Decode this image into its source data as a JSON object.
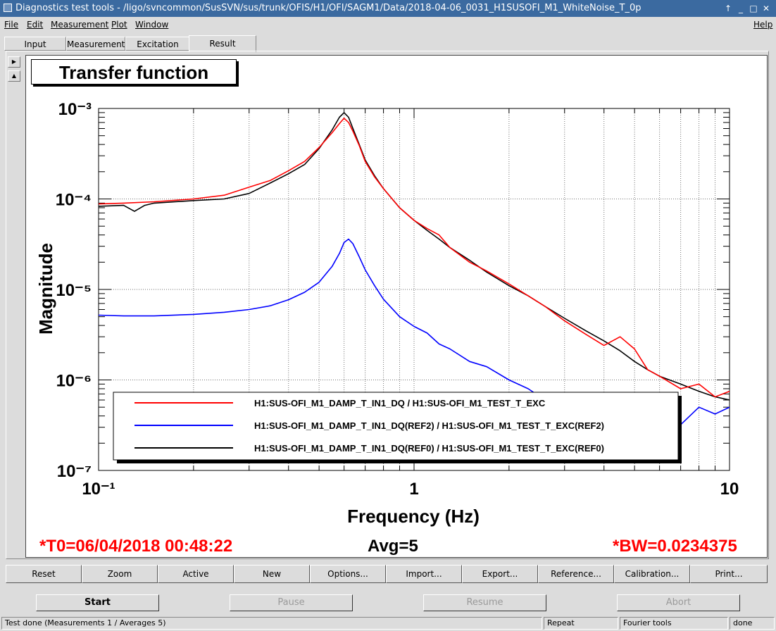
{
  "window": {
    "title": "Diagnostics test tools - /ligo/svncommon/SusSVN/sus/trunk/OFIS/H1/OFI/SAGM1/Data/2018-04-06_0031_H1SUSOFI_M1_WhiteNoise_T_0p"
  },
  "menu": {
    "file": "File",
    "edit": "Edit",
    "measurement": "Measurement",
    "plot": "Plot",
    "window": "Window",
    "help": "Help"
  },
  "tabs": {
    "input": "Input",
    "measurement": "Measurement",
    "excitation": "Excitation",
    "result": "Result"
  },
  "plot_title": "Transfer function",
  "footer": {
    "t0": "*T0=06/04/2018 00:48:22",
    "avg": "Avg=5",
    "bw": "*BW=0.0234375"
  },
  "buttons": {
    "reset": "Reset",
    "zoom": "Zoom",
    "active": "Active",
    "new": "New",
    "options": "Options...",
    "import": "Import...",
    "export": "Export...",
    "reference": "Reference...",
    "calibration": "Calibration...",
    "print": "Print..."
  },
  "controls": {
    "start": "Start",
    "pause": "Pause",
    "resume": "Resume",
    "abort": "Abort"
  },
  "status": {
    "message": "Test done (Measurements 1 / Averages 5)",
    "repeat": "Repeat",
    "fourier": "Fourier tools",
    "state": "done"
  },
  "colors": {
    "current": "#ff0000",
    "ref2": "#0000ff",
    "ref0": "#000000",
    "accent": "#ff0000"
  },
  "chart_data": {
    "type": "line",
    "title": "Transfer function",
    "xlabel": "Frequency (Hz)",
    "ylabel": "Magnitude",
    "xscale": "log",
    "yscale": "log",
    "xlim": [
      0.1,
      10
    ],
    "ylim": [
      1e-07,
      0.001
    ],
    "x_ticks": [
      {
        "value": 0.1,
        "label": "10⁻¹"
      },
      {
        "value": 1,
        "label": "1"
      },
      {
        "value": 10,
        "label": "10"
      }
    ],
    "y_ticks": [
      {
        "value": 1e-07,
        "label": "10⁻⁷"
      },
      {
        "value": 1e-06,
        "label": "10⁻⁶"
      },
      {
        "value": 1e-05,
        "label": "10⁻⁵"
      },
      {
        "value": 0.0001,
        "label": "10⁻⁴"
      },
      {
        "value": 0.001,
        "label": "10⁻³"
      }
    ],
    "grid": true,
    "legend_position": "bottom-center",
    "series": [
      {
        "name": "H1:SUS-OFI_M1_DAMP_T_IN1_DQ / H1:SUS-OFI_M1_TEST_T_EXC",
        "color": "#ff0000",
        "x": [
          0.1,
          0.12,
          0.15,
          0.2,
          0.25,
          0.3,
          0.35,
          0.4,
          0.45,
          0.5,
          0.55,
          0.58,
          0.6,
          0.62,
          0.64,
          0.67,
          0.7,
          0.75,
          0.8,
          0.9,
          1.0,
          1.1,
          1.2,
          1.3,
          1.5,
          1.7,
          2.0,
          2.3,
          2.6,
          3.0,
          3.5,
          4.0,
          4.5,
          5.0,
          5.5,
          6.0,
          7.0,
          8.0,
          9.0,
          10.0
        ],
        "y": [
          8.8e-05,
          9e-05,
          9.3e-05,
          0.0001,
          0.00011,
          0.000135,
          0.00016,
          0.000205,
          0.00026,
          0.00037,
          0.00054,
          0.00068,
          0.00078,
          0.0007,
          0.00056,
          0.00039,
          0.00026,
          0.000175,
          0.00013,
          8e-05,
          5.8e-05,
          4.7e-05,
          4e-05,
          2.9e-05,
          2e-05,
          1.6e-05,
          1.15e-05,
          8.5e-06,
          6.5e-06,
          4.5e-06,
          3.2e-06,
          2.4e-06,
          3e-06,
          2.2e-06,
          1.3e-06,
          1.1e-06,
          8e-07,
          9e-07,
          6.5e-07,
          7.5e-07
        ]
      },
      {
        "name": "H1:SUS-OFI_M1_DAMP_T_IN1_DQ(REF2) / H1:SUS-OFI_M1_TEST_T_EXC(REF2)",
        "color": "#0000ff",
        "x": [
          0.1,
          0.12,
          0.15,
          0.2,
          0.25,
          0.3,
          0.35,
          0.4,
          0.45,
          0.5,
          0.55,
          0.58,
          0.6,
          0.62,
          0.64,
          0.67,
          0.7,
          0.75,
          0.8,
          0.9,
          1.0,
          1.1,
          1.2,
          1.3,
          1.5,
          1.7,
          2.0,
          2.3,
          2.6,
          3.0,
          3.5,
          4.0,
          4.5,
          5.0,
          5.5,
          6.0,
          7.0,
          8.0,
          9.0,
          10.0
        ],
        "y": [
          5.2e-06,
          5.1e-06,
          5.1e-06,
          5.3e-06,
          5.6e-06,
          6e-06,
          6.6e-06,
          7.7e-06,
          9.3e-06,
          1.2e-05,
          1.8e-05,
          2.5e-05,
          3.3e-05,
          3.6e-05,
          3.2e-05,
          2.3e-05,
          1.65e-05,
          1.1e-05,
          7.8e-06,
          5e-06,
          3.9e-06,
          3.3e-06,
          2.5e-06,
          2.2e-06,
          1.6e-06,
          1.4e-06,
          1e-06,
          8e-07,
          6e-07,
          4.5e-07,
          3.5e-07,
          4e-07,
          6e-07,
          3.5e-07,
          3e-07,
          4.5e-07,
          3.2e-07,
          5e-07,
          4.2e-07,
          5e-07
        ]
      },
      {
        "name": "H1:SUS-OFI_M1_DAMP_T_IN1_DQ(REF0) / H1:SUS-OFI_M1_TEST_T_EXC(REF0)",
        "color": "#000000",
        "x": [
          0.1,
          0.12,
          0.13,
          0.14,
          0.15,
          0.2,
          0.25,
          0.3,
          0.35,
          0.4,
          0.45,
          0.5,
          0.55,
          0.58,
          0.6,
          0.62,
          0.64,
          0.67,
          0.7,
          0.75,
          0.8,
          0.9,
          1.0,
          1.1,
          1.2,
          1.3,
          1.5,
          1.7,
          2.0,
          2.3,
          2.6,
          3.0,
          3.5,
          4.0,
          4.5,
          5.0,
          5.5,
          6.0,
          7.0,
          8.0,
          9.0,
          10.0
        ],
        "y": [
          8.3e-05,
          8.5e-05,
          7.3e-05,
          8.5e-05,
          9e-05,
          9.6e-05,
          0.0001,
          0.000115,
          0.00015,
          0.00019,
          0.00024,
          0.00036,
          0.00058,
          0.0008,
          0.0009,
          0.0008,
          0.0006,
          0.0004,
          0.00027,
          0.00018,
          0.00013,
          8e-05,
          5.8e-05,
          4.5e-05,
          3.6e-05,
          2.9e-05,
          2.1e-05,
          1.55e-05,
          1.1e-05,
          8.5e-06,
          6.5e-06,
          4.8e-06,
          3.5e-06,
          2.7e-06,
          2.1e-06,
          1.6e-06,
          1.3e-06,
          1.1e-06,
          9e-07,
          7.5e-07,
          6.5e-07,
          6e-07
        ]
      }
    ]
  }
}
